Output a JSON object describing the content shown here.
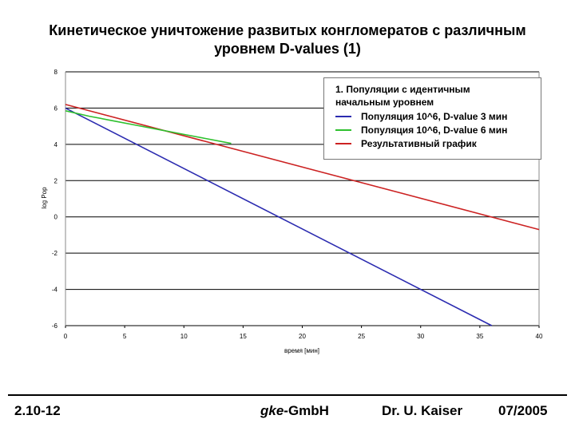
{
  "slide": {
    "title_line1": "Кинетическое уничтожение развитых конгломератов с различным",
    "title_line2": "уровнем D-values (1)"
  },
  "chart_data": {
    "type": "line",
    "xlabel": "время [мин]",
    "ylabel": "log Pop",
    "xlim": [
      0,
      40
    ],
    "ylim": [
      -6,
      8
    ],
    "xticks": [
      0,
      5,
      10,
      15,
      20,
      25,
      30,
      35,
      40
    ],
    "yticks": [
      -6,
      -4,
      -2,
      0,
      2,
      4,
      6,
      8
    ],
    "grid": "horizontal",
    "legend": {
      "placement": "top-right",
      "title_line1": "1. Популяции с идентичным",
      "title_line2": "начальным уровнем"
    },
    "series": [
      {
        "name": "Популяция 10^6, D-value 3 мин",
        "color": "#2b2bb0",
        "x": [
          0,
          36
        ],
        "y": [
          6.0,
          -6.0
        ]
      },
      {
        "name": "Популяция 10^6, D-value 6 мин",
        "color": "#2ec02e",
        "x": [
          0,
          2,
          4,
          6,
          8,
          10,
          12,
          14
        ],
        "y": [
          5.85,
          5.55,
          5.3,
          5.05,
          4.8,
          4.55,
          4.3,
          4.05
        ]
      },
      {
        "name": "Результативный график",
        "color": "#cc2222",
        "x": [
          0,
          40
        ],
        "y": [
          6.2,
          -0.7
        ]
      }
    ]
  },
  "footer": {
    "left": "2.10-12",
    "center_italic": "gke",
    "center_rest": "-GmbH",
    "author": "Dr. U. Kaiser",
    "date": "07/2005"
  }
}
